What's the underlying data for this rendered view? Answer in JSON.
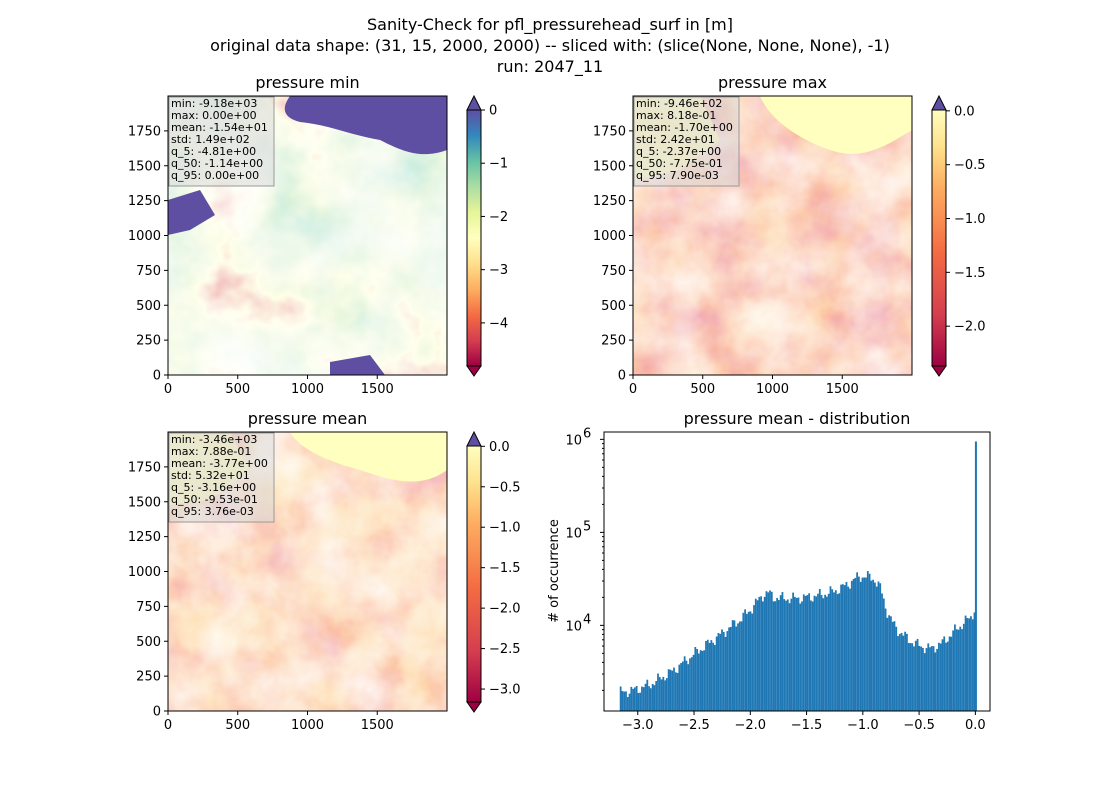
{
  "figure": {
    "title_lines": [
      "Sanity-Check for pfl_pressurehead_surf in [m]",
      "original data shape: (31, 15, 2000, 2000) -- sliced with: (slice(None, None, None), -1)",
      "run: 2047_11"
    ]
  },
  "chart_data": [
    {
      "type": "heatmap",
      "title": "pressure min",
      "colormap": "Spectral",
      "xlim": [
        0,
        2000
      ],
      "ylim": [
        0,
        2000
      ],
      "xticks": [
        0,
        500,
        1000,
        1500
      ],
      "yticks": [
        0,
        250,
        500,
        750,
        1000,
        1250,
        1500,
        1750
      ],
      "colorbar": {
        "min": -4.81,
        "max": 0,
        "ticks": [
          0,
          -1,
          -2,
          -3,
          -4
        ],
        "tick_labels": [
          "0",
          "−1",
          "−2",
          "−3",
          "−4"
        ],
        "extend": "both"
      },
      "stats": [
        "min: -9.18e+03",
        "max: 0.00e+00",
        "mean: -1.54e+01",
        "std: 1.49e+02",
        "q_5: -4.81e+00",
        "q_50: -1.14e+00",
        "q_95: 0.00e+00"
      ]
    },
    {
      "type": "heatmap",
      "title": "pressure max",
      "colormap": "Spectral",
      "xlim": [
        0,
        2000
      ],
      "ylim": [
        0,
        2000
      ],
      "xticks": [
        0,
        500,
        1000,
        1500
      ],
      "yticks": [
        0,
        250,
        500,
        750,
        1000,
        1250,
        1500,
        1750
      ],
      "colorbar": {
        "min": -2.37,
        "max": 0.0079,
        "ticks": [
          0.0,
          -0.5,
          -1.0,
          -1.5,
          -2.0
        ],
        "tick_labels": [
          "0.0",
          "−0.5",
          "−1.0",
          "−1.5",
          "−2.0"
        ],
        "extend": "both"
      },
      "stats": [
        "min: -9.46e+02",
        "max: 8.18e-01",
        "mean: -1.70e+00",
        "std: 2.42e+01",
        "q_5: -2.37e+00",
        "q_50: -7.75e-01",
        "q_95: 7.90e-03"
      ]
    },
    {
      "type": "heatmap",
      "title": "pressure mean",
      "colormap": "Spectral",
      "xlim": [
        0,
        2000
      ],
      "ylim": [
        0,
        2000
      ],
      "xticks": [
        0,
        500,
        1000,
        1500
      ],
      "yticks": [
        0,
        250,
        500,
        750,
        1000,
        1250,
        1500,
        1750
      ],
      "colorbar": {
        "min": -3.16,
        "max": 0.0038,
        "ticks": [
          0.0,
          -0.5,
          -1.0,
          -1.5,
          -2.0,
          -2.5,
          -3.0
        ],
        "tick_labels": [
          "0.0",
          "−0.5",
          "−1.0",
          "−1.5",
          "−2.0",
          "−2.5",
          "−3.0"
        ],
        "extend": "both"
      },
      "stats": [
        "min: -3.46e+03",
        "max: 7.88e-01",
        "mean: -3.77e+00",
        "std: 5.32e+01",
        "q_5: -3.16e+00",
        "q_50: -9.53e-01",
        "q_95: 3.76e-03"
      ]
    },
    {
      "type": "bar",
      "title": "pressure mean - distribution",
      "ylabel": "# of occurrence",
      "yscale": "log",
      "xlim": [
        -3.3,
        0.13
      ],
      "ylim": [
        1200,
        1200000
      ],
      "xticks": [
        -3.0,
        -2.5,
        -2.0,
        -1.5,
        -1.0,
        -0.5,
        0.0
      ],
      "xtick_labels": [
        "−3.0",
        "−2.5",
        "−2.0",
        "−1.5",
        "−1.0",
        "−0.5",
        "0.0"
      ],
      "yticks": [
        10000,
        100000,
        1000000
      ],
      "ytick_labels": [
        [
          "10",
          "4"
        ],
        [
          "10",
          "5"
        ],
        [
          "10",
          "6"
        ]
      ],
      "bin_width": 0.0158,
      "bins_x": [
        -3.16,
        -3.05,
        -2.9,
        -2.7,
        -2.5,
        -2.3,
        -2.1,
        -2.0,
        -1.9,
        -1.85,
        -1.8,
        -1.7,
        -1.6,
        -1.5,
        -1.4,
        -1.3,
        -1.2,
        -1.1,
        -1.05,
        -1.0,
        -0.95,
        -0.9,
        -0.85,
        -0.8,
        -0.75,
        -0.7,
        -0.6,
        -0.5,
        -0.4,
        -0.3,
        -0.2,
        -0.1,
        -0.05,
        -0.02,
        -0.008,
        0.0
      ],
      "bins_y": [
        1900,
        2000,
        2300,
        3200,
        5000,
        7500,
        11500,
        15000,
        21000,
        22500,
        20000,
        19500,
        19500,
        20000,
        21000,
        22500,
        25000,
        30000,
        33000,
        34000,
        33000,
        31000,
        25000,
        15000,
        11000,
        9000,
        7000,
        6000,
        5600,
        6500,
        8500,
        11000,
        12000,
        14000,
        18000,
        950000
      ]
    }
  ]
}
